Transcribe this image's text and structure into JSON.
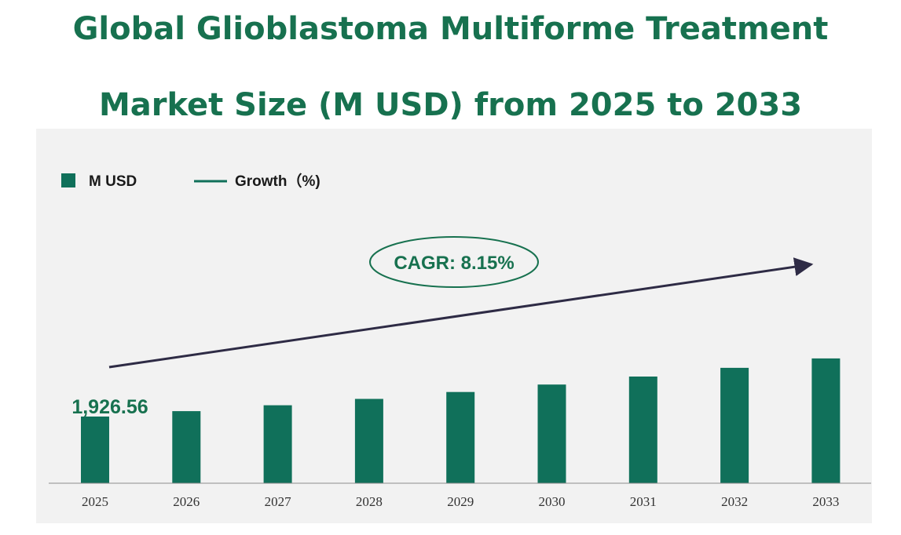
{
  "title": {
    "line1": "Global Glioblastoma Multiforme Treatment",
    "line2": "Market Size (M USD) from 2025 to 2033"
  },
  "colors": {
    "bar": "#10705a",
    "title": "#17714f",
    "arrow": "#2e2b45",
    "panel": "#f2f2f2"
  },
  "legend": {
    "bar_label": "M USD",
    "line_label": "Growth（%)"
  },
  "cagr_label": "CAGR: 8.15%",
  "chart_data": {
    "type": "bar",
    "title": "Global Glioblastoma Multiforme Treatment Market Size (M USD) from 2025 to 2033",
    "categories": [
      "2025",
      "2026",
      "2027",
      "2028",
      "2029",
      "2030",
      "2031",
      "2032",
      "2033"
    ],
    "series": [
      {
        "name": "M USD",
        "values": [
          1926.56,
          2083.5,
          2253.2,
          2436.8,
          2635.4,
          2850.2,
          3082.5,
          3333.7,
          3605.4
        ]
      }
    ],
    "data_labels": [
      {
        "category": "2025",
        "text": "1,926.56"
      }
    ],
    "annotation": "CAGR: 8.15%",
    "legend_position": "top-left",
    "grid": false,
    "ylim": [
      0,
      3800
    ]
  }
}
